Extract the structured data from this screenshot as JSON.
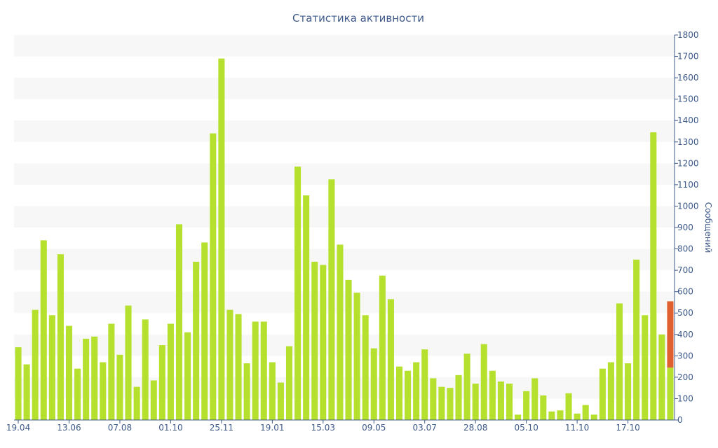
{
  "chart_data": {
    "type": "bar",
    "title": "Статистика активности",
    "xlabel": "",
    "ylabel": "Сообщений",
    "ylim": [
      0,
      1800
    ],
    "y_ticks": [
      0,
      100,
      200,
      300,
      400,
      500,
      600,
      700,
      800,
      900,
      1000,
      1100,
      1200,
      1300,
      1400,
      1500,
      1600,
      1700,
      1800
    ],
    "x_tick_labels": [
      "19.04",
      "13.06",
      "07.08",
      "01.10",
      "25.11",
      "19.01",
      "15.03",
      "09.05",
      "03.07",
      "28.08",
      "05.10",
      "11.10",
      "17.10"
    ],
    "x_tick_positions": [
      0,
      6,
      12,
      18,
      24,
      30,
      36,
      42,
      48,
      54,
      60,
      66,
      72
    ],
    "grid": "alternating horizontal bands",
    "colors": {
      "bar": "#b5e02e",
      "highlight": "#e06030",
      "axis": "#3e5a8a",
      "band": "#f7f7f7"
    },
    "values": [
      340,
      260,
      515,
      840,
      490,
      775,
      440,
      240,
      380,
      390,
      270,
      450,
      305,
      535,
      155,
      470,
      185,
      350,
      450,
      915,
      410,
      740,
      830,
      1340,
      1690,
      515,
      495,
      265,
      460,
      460,
      270,
      175,
      345,
      1185,
      1050,
      740,
      725,
      1125,
      820,
      655,
      595,
      490,
      335,
      675,
      565,
      250,
      230,
      270,
      330,
      195,
      155,
      150,
      210,
      310,
      170,
      355,
      230,
      180,
      170,
      25,
      135,
      195,
      115,
      40,
      45,
      125,
      30,
      70,
      25,
      240,
      270,
      545,
      265,
      750,
      490,
      1345,
      400,
      555
    ],
    "highlight_index": 77,
    "highlight_split": 245
  }
}
